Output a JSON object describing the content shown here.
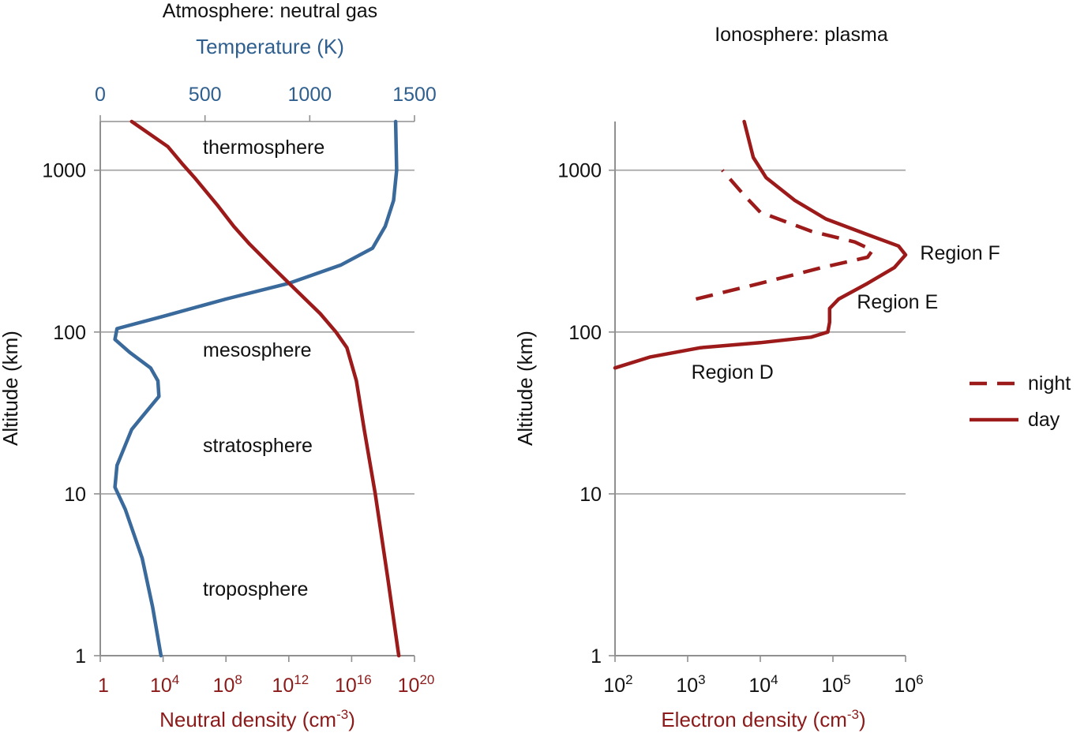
{
  "colors": {
    "temperature": "#3a6a9b",
    "density": "#9c1a1a",
    "grid": "#a0a0a0",
    "axis": "#909090"
  },
  "chart_data": [
    {
      "type": "line",
      "title": "Atmosphere: neutral gas",
      "ylabel": "Altitude (km)",
      "yscale": "log",
      "ylim": [
        1,
        2000
      ],
      "yticks": [
        1,
        10,
        100,
        1000
      ],
      "ytick_labels": [
        "1",
        "10",
        "100",
        "1000"
      ],
      "grid": true,
      "top_axis": {
        "label": "Temperature (K)",
        "range": [
          0,
          1500
        ],
        "ticks": [
          0,
          500,
          1000,
          1500
        ],
        "tick_labels": [
          "0",
          "500",
          "1000",
          "1500"
        ]
      },
      "bottom_axis": {
        "label_main": "Neutral density (cm",
        "label_sup": "-3",
        "label_end": ")",
        "scale": "log",
        "range_exp": [
          0,
          20
        ],
        "ticks_exp": [
          0,
          4,
          8,
          12,
          16,
          20
        ],
        "tick_labels": [
          {
            "base": "1",
            "sup": ""
          },
          {
            "base": "10",
            "sup": "4"
          },
          {
            "base": "10",
            "sup": "8"
          },
          {
            "base": "10",
            "sup": "12"
          },
          {
            "base": "10",
            "sup": "16"
          },
          {
            "base": "10",
            "sup": "20"
          }
        ]
      },
      "layers": [
        {
          "label": "thermosphere",
          "altitude_km": 1400
        },
        {
          "label": "mesosphere",
          "altitude_km": 78
        },
        {
          "label": "stratosphere",
          "altitude_km": 20
        },
        {
          "label": "troposphere",
          "altitude_km": 2.6
        }
      ],
      "series": [
        {
          "name": "temperature",
          "axis": "top",
          "points": [
            {
              "x": 290,
              "y": 1
            },
            {
              "x": 250,
              "y": 2
            },
            {
              "x": 200,
              "y": 4
            },
            {
              "x": 120,
              "y": 8
            },
            {
              "x": 70,
              "y": 11
            },
            {
              "x": 80,
              "y": 15
            },
            {
              "x": 150,
              "y": 25
            },
            {
              "x": 200,
              "y": 30
            },
            {
              "x": 280,
              "y": 40
            },
            {
              "x": 275,
              "y": 50
            },
            {
              "x": 240,
              "y": 60
            },
            {
              "x": 140,
              "y": 75
            },
            {
              "x": 70,
              "y": 90
            },
            {
              "x": 80,
              "y": 105
            },
            {
              "x": 300,
              "y": 125
            },
            {
              "x": 600,
              "y": 160
            },
            {
              "x": 900,
              "y": 200
            },
            {
              "x": 1150,
              "y": 260
            },
            {
              "x": 1300,
              "y": 330
            },
            {
              "x": 1360,
              "y": 450
            },
            {
              "x": 1400,
              "y": 650
            },
            {
              "x": 1415,
              "y": 1000
            },
            {
              "x": 1410,
              "y": 2000
            }
          ]
        },
        {
          "name": "neutral density",
          "axis": "bottom",
          "points": [
            {
              "x": 19.0,
              "y": 1
            },
            {
              "x": 18.3,
              "y": 3
            },
            {
              "x": 17.5,
              "y": 10
            },
            {
              "x": 16.8,
              "y": 25
            },
            {
              "x": 16.3,
              "y": 50
            },
            {
              "x": 15.7,
              "y": 80
            },
            {
              "x": 15.0,
              "y": 100
            },
            {
              "x": 14.0,
              "y": 130
            },
            {
              "x": 12.5,
              "y": 180
            },
            {
              "x": 11.0,
              "y": 250
            },
            {
              "x": 9.5,
              "y": 350
            },
            {
              "x": 8.5,
              "y": 450
            },
            {
              "x": 7.5,
              "y": 600
            },
            {
              "x": 6.0,
              "y": 900
            },
            {
              "x": 5.2,
              "y": 1100
            },
            {
              "x": 4.3,
              "y": 1400
            },
            {
              "x": 2.0,
              "y": 2000
            }
          ]
        }
      ]
    },
    {
      "type": "line",
      "title": "Ionosphere: plasma",
      "ylabel": "Altitude (km)",
      "yscale": "log",
      "ylim": [
        1,
        2000
      ],
      "yticks": [
        1,
        10,
        100,
        1000
      ],
      "ytick_labels": [
        "1",
        "10",
        "100",
        "1000"
      ],
      "grid": true,
      "bottom_axis": {
        "label_main": "Electron density (cm",
        "label_sup": "-3",
        "label_end": ")",
        "scale": "log",
        "range_exp": [
          2,
          6
        ],
        "ticks_exp": [
          2,
          3,
          4,
          5,
          6
        ],
        "tick_labels": [
          {
            "base": "10",
            "sup": "2"
          },
          {
            "base": "10",
            "sup": "3"
          },
          {
            "base": "10",
            "sup": "4"
          },
          {
            "base": "10",
            "sup": "5"
          },
          {
            "base": "10",
            "sup": "6"
          }
        ]
      },
      "regions": [
        {
          "label": "Region F",
          "altitude_km": 310,
          "density_exp": 6.2
        },
        {
          "label": "Region E",
          "altitude_km": 155,
          "density_exp": 5.33
        },
        {
          "label": "Region D",
          "altitude_km": 57,
          "density_exp": 3.05
        }
      ],
      "legend": {
        "position": "right",
        "entries": [
          {
            "label": "night",
            "style": "dashed"
          },
          {
            "label": "day",
            "style": "solid"
          }
        ]
      },
      "series": [
        {
          "name": "day",
          "style": "solid",
          "points": [
            {
              "x": 100,
              "y": 60
            },
            {
              "x": 300,
              "y": 70
            },
            {
              "x": 1500,
              "y": 80
            },
            {
              "x": 10000,
              "y": 86
            },
            {
              "x": 50000,
              "y": 93
            },
            {
              "x": 85000,
              "y": 100
            },
            {
              "x": 90000,
              "y": 115
            },
            {
              "x": 90000,
              "y": 140
            },
            {
              "x": 120000,
              "y": 160
            },
            {
              "x": 300000,
              "y": 200
            },
            {
              "x": 700000,
              "y": 250
            },
            {
              "x": 1000000,
              "y": 300
            },
            {
              "x": 800000,
              "y": 340
            },
            {
              "x": 300000,
              "y": 400
            },
            {
              "x": 80000,
              "y": 500
            },
            {
              "x": 30000,
              "y": 650
            },
            {
              "x": 12000,
              "y": 900
            },
            {
              "x": 8000,
              "y": 1200
            },
            {
              "x": 6000,
              "y": 2000
            }
          ]
        },
        {
          "name": "night",
          "style": "dashed",
          "points": [
            {
              "x": 1300,
              "y": 160
            },
            {
              "x": 10000,
              "y": 200
            },
            {
              "x": 70000,
              "y": 250
            },
            {
              "x": 300000,
              "y": 290
            },
            {
              "x": 350000,
              "y": 320
            },
            {
              "x": 200000,
              "y": 360
            },
            {
              "x": 50000,
              "y": 420
            },
            {
              "x": 10000,
              "y": 550
            },
            {
              "x": 6000,
              "y": 700
            },
            {
              "x": 3000,
              "y": 1000
            }
          ]
        }
      ]
    }
  ]
}
